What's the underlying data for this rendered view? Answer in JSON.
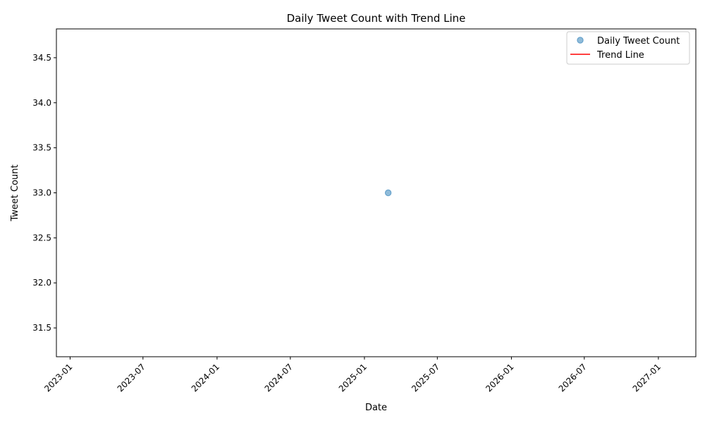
{
  "chart_data": {
    "type": "scatter",
    "title": "Daily Tweet Count with Trend Line",
    "xlabel": "Date",
    "ylabel": "Tweet Count",
    "x_axis_kind": "date",
    "xlim": [
      "2022-11-28",
      "2027-04-04"
    ],
    "ylim": [
      31.18,
      34.82
    ],
    "x_ticks": [
      "2023-01",
      "2023-07",
      "2024-01",
      "2024-07",
      "2025-01",
      "2025-07",
      "2026-01",
      "2026-07",
      "2027-01"
    ],
    "y_ticks": [
      "31.5",
      "32.0",
      "32.5",
      "33.0",
      "33.5",
      "34.0",
      "34.5"
    ],
    "grid": false,
    "legend_position": "top-right",
    "series": [
      {
        "name": "Daily Tweet Count",
        "kind": "scatter",
        "color": "#1f77b4",
        "points": [
          {
            "x": "2025-03-01",
            "y": 33
          }
        ]
      },
      {
        "name": "Trend Line",
        "kind": "line",
        "color": "#ff0000",
        "points": []
      }
    ]
  }
}
